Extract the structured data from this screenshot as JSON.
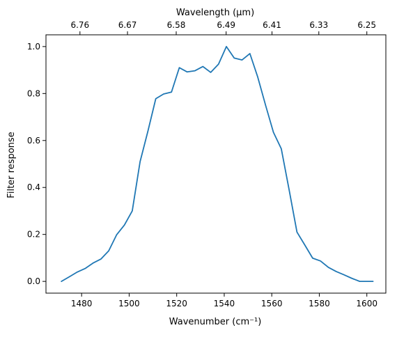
{
  "chart_data": {
    "type": "line",
    "xlabel": "Wavenumber (cm⁻¹)",
    "ylabel": "Filter response",
    "top_xlabel": "Wavelength (μm)",
    "xlim": [
      1465,
      1608
    ],
    "ylim": [
      -0.05,
      1.05
    ],
    "x_ticks": [
      1480,
      1500,
      1520,
      1540,
      1560,
      1580,
      1600
    ],
    "y_ticks": [
      0.0,
      0.2,
      0.4,
      0.6,
      0.8,
      1.0
    ],
    "x_tick_labels": [
      "1480",
      "1500",
      "1520",
      "1540",
      "1560",
      "1580",
      "1600"
    ],
    "y_tick_labels": [
      "0.0",
      "0.2",
      "0.4",
      "0.6",
      "0.8",
      "1.0"
    ],
    "top_ticks": [
      {
        "label": "6.76",
        "wavenumber": 1479.3
      },
      {
        "label": "6.67",
        "wavenumber": 1499.3
      },
      {
        "label": "6.58",
        "wavenumber": 1519.8
      },
      {
        "label": "6.49",
        "wavenumber": 1540.8
      },
      {
        "label": "6.41",
        "wavenumber": 1560.1
      },
      {
        "label": "6.33",
        "wavenumber": 1579.8
      },
      {
        "label": "6.25",
        "wavenumber": 1600.0
      }
    ],
    "grid": false,
    "line_color": "#1f77b4",
    "series": [
      {
        "x": [
          1471.5,
          1474.9,
          1478.2,
          1481.5,
          1484.8,
          1488.1,
          1491.4,
          1494.7,
          1498.0,
          1501.3,
          1504.6,
          1507.9,
          1511.2,
          1514.5,
          1517.8,
          1521.1,
          1524.4,
          1527.7,
          1531.0,
          1534.3,
          1537.6,
          1540.9,
          1544.2,
          1547.5,
          1550.8,
          1554.1,
          1557.4,
          1560.7,
          1564.0,
          1567.3,
          1570.6,
          1573.9,
          1577.2,
          1580.5,
          1583.8,
          1587.1,
          1590.4,
          1593.7,
          1597.0,
          1600.3,
          1602.6
        ],
        "y": [
          0.0,
          0.02,
          0.04,
          0.055,
          0.078,
          0.095,
          0.13,
          0.198,
          0.24,
          0.3,
          0.51,
          0.64,
          0.778,
          0.798,
          0.806,
          0.91,
          0.892,
          0.897,
          0.915,
          0.89,
          0.925,
          1.0,
          0.951,
          0.943,
          0.97,
          0.87,
          0.75,
          0.635,
          0.565,
          0.39,
          0.21,
          0.155,
          0.099,
          0.087,
          0.06,
          0.042,
          0.028,
          0.013,
          0.0,
          0.0,
          0.0
        ]
      }
    ]
  }
}
